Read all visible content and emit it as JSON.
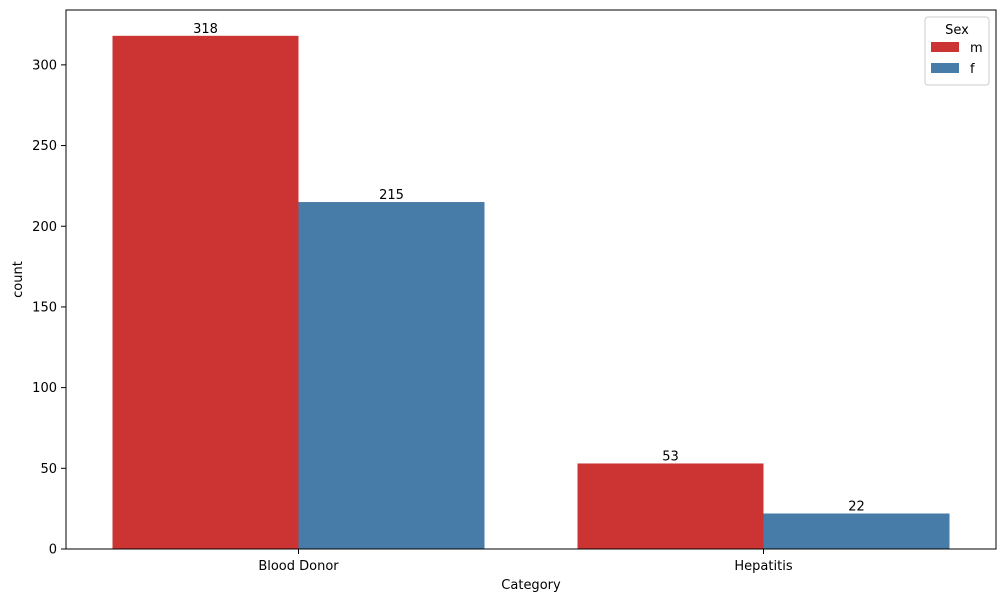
{
  "chart_data": {
    "type": "bar",
    "title": "",
    "xlabel": "Category",
    "ylabel": "count",
    "categories": [
      "Blood Donor",
      "Hepatitis"
    ],
    "series": [
      {
        "name": "m",
        "values": [
          318,
          53
        ],
        "color": "#cc3333"
      },
      {
        "name": "f",
        "values": [
          215,
          22
        ],
        "color": "#477ca8"
      }
    ],
    "ylim": [
      0,
      334
    ],
    "yticks": [
      0,
      50,
      100,
      150,
      200,
      250,
      300
    ],
    "grid": false,
    "legend": {
      "title": "Sex",
      "placement": "top-right"
    },
    "data_labels": true
  }
}
